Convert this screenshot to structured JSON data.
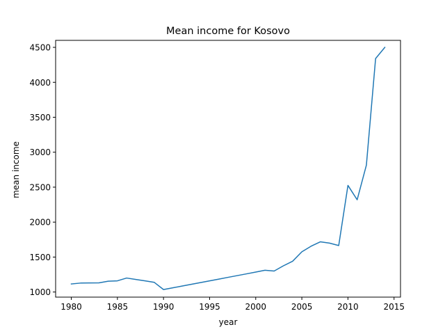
{
  "chart_data": {
    "type": "line",
    "title": "Mean income for Kosovo",
    "xlabel": "year",
    "ylabel": "mean income",
    "xlim": [
      1978.3,
      2015.7
    ],
    "ylim": [
      927,
      4600
    ],
    "xticks": [
      1980,
      1985,
      1990,
      1995,
      2000,
      2005,
      2010,
      2015
    ],
    "yticks": [
      1000,
      1500,
      2000,
      2500,
      3000,
      3500,
      4000,
      4500
    ],
    "grid": false,
    "line_color": "#1f77b4",
    "x": [
      1980,
      1981,
      1982,
      1983,
      1984,
      1985,
      1986,
      1987,
      1988,
      1989,
      1990,
      1991,
      1992,
      1993,
      1994,
      1995,
      1996,
      1997,
      1998,
      1999,
      2000,
      2001,
      2002,
      2003,
      2004,
      2005,
      2006,
      2007,
      2008,
      2009,
      2010,
      2011,
      2012,
      2013,
      2014
    ],
    "y": [
      1115,
      1128,
      1130,
      1131,
      1155,
      1160,
      1200,
      1180,
      1160,
      1138,
      1035,
      1060,
      1085,
      1110,
      1135,
      1160,
      1185,
      1210,
      1235,
      1260,
      1285,
      1311,
      1300,
      1375,
      1440,
      1575,
      1655,
      1718,
      1700,
      1665,
      2525,
      2320,
      2815,
      4340,
      4500
    ]
  }
}
